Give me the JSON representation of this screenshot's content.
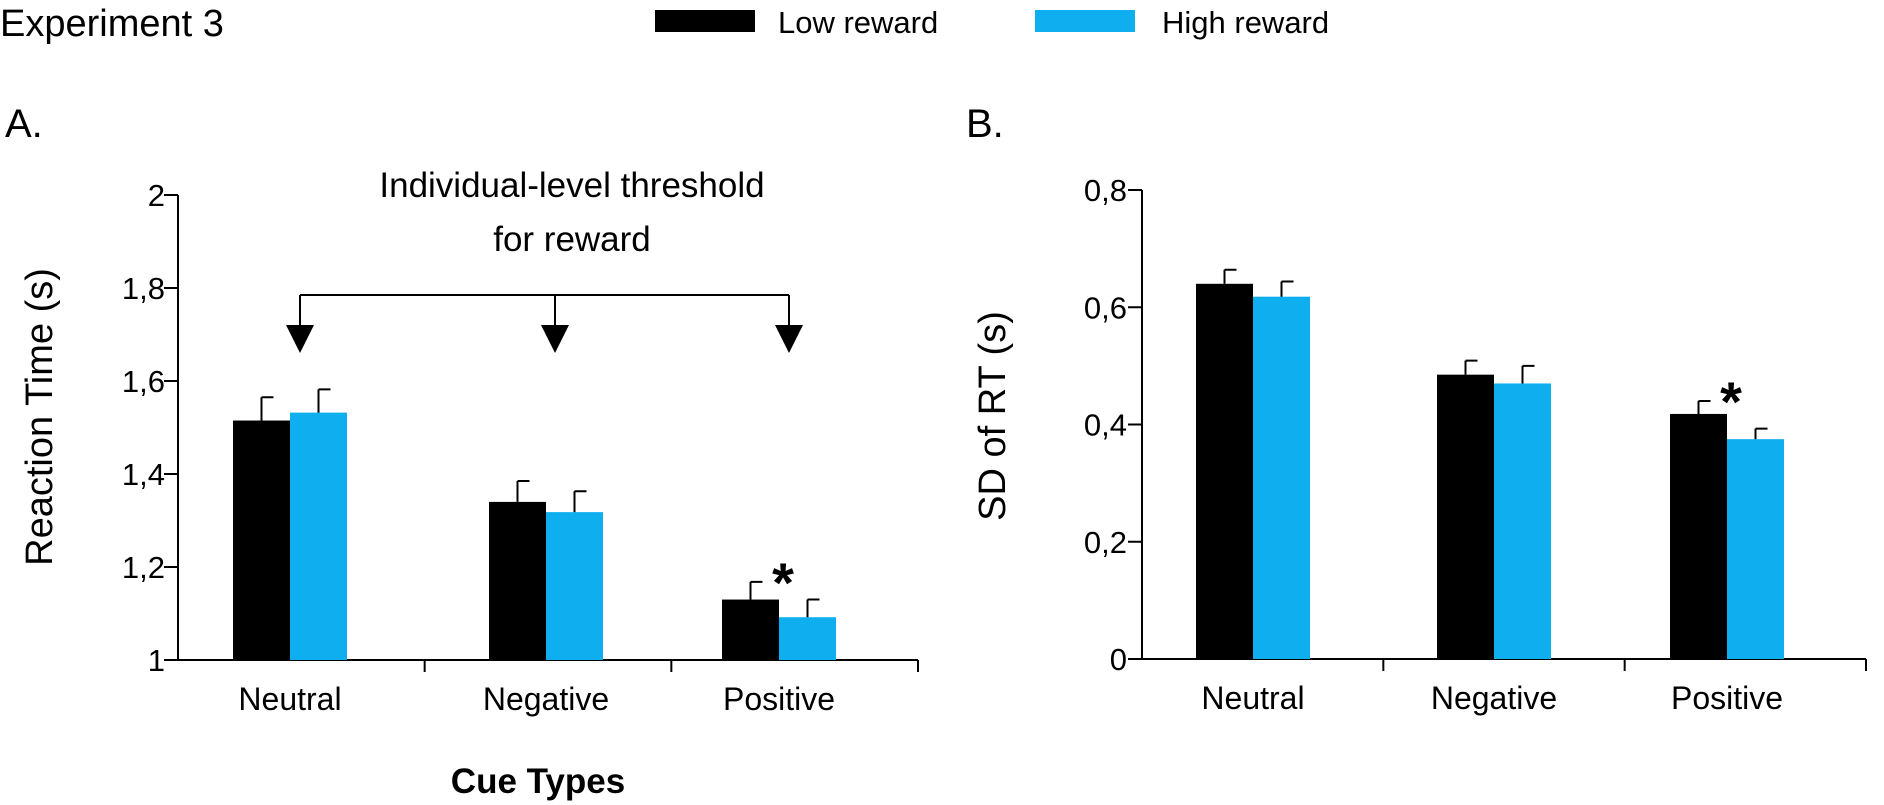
{
  "figure": {
    "title": "Experiment 3",
    "cue_types_label": "Cue Types",
    "threshold_label_line1": "Individual-level threshold",
    "threshold_label_line2": "for reward"
  },
  "legend": [
    {
      "label": "Low reward",
      "color": "#000000"
    },
    {
      "label": "High reward",
      "color": "#0eaeef"
    }
  ],
  "chart_data": [
    {
      "panel_label": "A.",
      "type": "bar",
      "categories": [
        "Neutral",
        "Negative",
        "Positive"
      ],
      "series": [
        {
          "name": "Low reward",
          "color": "#000000",
          "values": [
            1.515,
            1.34,
            1.13
          ],
          "errors": [
            0.05,
            0.045,
            0.038
          ]
        },
        {
          "name": "High reward",
          "color": "#0eaeef",
          "values": [
            1.532,
            1.318,
            1.092
          ],
          "errors": [
            0.05,
            0.045,
            0.038
          ]
        }
      ],
      "ylabel": "Reaction Time (s)",
      "xlabel": "Cue Types",
      "ylim": [
        1,
        2
      ],
      "yticks": [
        1,
        1.2,
        1.4,
        1.6,
        1.8,
        2
      ],
      "ytick_labels": [
        "1",
        "1,2",
        "1,4",
        "1,6",
        "1,8",
        "2"
      ],
      "annotations": [
        {
          "text": "*",
          "category": "Positive"
        }
      ]
    },
    {
      "panel_label": "B.",
      "type": "bar",
      "categories": [
        "Neutral",
        "Negative",
        "Positive"
      ],
      "series": [
        {
          "name": "Low reward",
          "color": "#000000",
          "values": [
            0.64,
            0.485,
            0.418
          ],
          "errors": [
            0.024,
            0.024,
            0.022
          ]
        },
        {
          "name": "High reward",
          "color": "#0eaeef",
          "values": [
            0.618,
            0.47,
            0.375
          ],
          "errors": [
            0.026,
            0.03,
            0.018
          ]
        }
      ],
      "ylabel": "SD of RT (s)",
      "ylim": [
        0,
        0.8
      ],
      "yticks": [
        0,
        0.2,
        0.4,
        0.6,
        0.8
      ],
      "ytick_labels": [
        "0",
        "0,2",
        "0,4",
        "0,6",
        "0,8"
      ],
      "annotations": [
        {
          "text": "*",
          "category": "Positive"
        }
      ]
    }
  ]
}
